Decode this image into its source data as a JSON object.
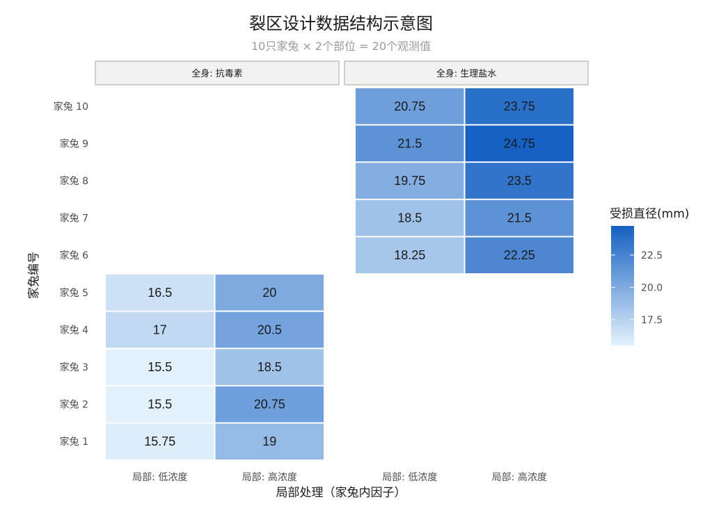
{
  "chart_data": {
    "type": "heatmap",
    "title": "裂区设计数据结构示意图",
    "subtitle": "10只家兔 × 2个部位 = 20个观测值",
    "xlabel": "局部处理（家兔内因子）",
    "ylabel": "家兔编号",
    "legend_title": "受损直径(mm)",
    "legend_placement": "right",
    "legend_ticks": [
      17.5,
      20.0,
      22.5
    ],
    "legend_tick_labels": [
      "17.5",
      "20.0",
      "22.5"
    ],
    "value_range": [
      15.5,
      24.75
    ],
    "color_low": "#e3f1fc",
    "color_high": "#1560c2",
    "grid": false,
    "rows": [
      "家兔 1",
      "家兔 2",
      "家兔 3",
      "家兔 4",
      "家兔 5",
      "家兔 6",
      "家兔 7",
      "家兔 8",
      "家兔 9",
      "家兔 10"
    ],
    "columns": [
      "局部: 低浓度",
      "局部: 高浓度"
    ],
    "panels": [
      {
        "label": "全身: 抗毒素",
        "cells": [
          {
            "row": "家兔 1",
            "col": "局部: 低浓度",
            "value": 15.75,
            "label": "15.75"
          },
          {
            "row": "家兔 1",
            "col": "局部: 高浓度",
            "value": 19,
            "label": "19"
          },
          {
            "row": "家兔 2",
            "col": "局部: 低浓度",
            "value": 15.5,
            "label": "15.5"
          },
          {
            "row": "家兔 2",
            "col": "局部: 高浓度",
            "value": 20.75,
            "label": "20.75"
          },
          {
            "row": "家兔 3",
            "col": "局部: 低浓度",
            "value": 15.5,
            "label": "15.5"
          },
          {
            "row": "家兔 3",
            "col": "局部: 高浓度",
            "value": 18.5,
            "label": "18.5"
          },
          {
            "row": "家兔 4",
            "col": "局部: 低浓度",
            "value": 17,
            "label": "17"
          },
          {
            "row": "家兔 4",
            "col": "局部: 高浓度",
            "value": 20.5,
            "label": "20.5"
          },
          {
            "row": "家兔 5",
            "col": "局部: 低浓度",
            "value": 16.5,
            "label": "16.5"
          },
          {
            "row": "家兔 5",
            "col": "局部: 高浓度",
            "value": 20,
            "label": "20"
          }
        ]
      },
      {
        "label": "全身: 生理盐水",
        "cells": [
          {
            "row": "家兔 6",
            "col": "局部: 低浓度",
            "value": 18.25,
            "label": "18.25"
          },
          {
            "row": "家兔 6",
            "col": "局部: 高浓度",
            "value": 22.25,
            "label": "22.25"
          },
          {
            "row": "家兔 7",
            "col": "局部: 低浓度",
            "value": 18.5,
            "label": "18.5"
          },
          {
            "row": "家兔 7",
            "col": "局部: 高浓度",
            "value": 21.5,
            "label": "21.5"
          },
          {
            "row": "家兔 8",
            "col": "局部: 低浓度",
            "value": 19.75,
            "label": "19.75"
          },
          {
            "row": "家兔 8",
            "col": "局部: 高浓度",
            "value": 23.5,
            "label": "23.5"
          },
          {
            "row": "家兔 9",
            "col": "局部: 低浓度",
            "value": 21.5,
            "label": "21.5"
          },
          {
            "row": "家兔 9",
            "col": "局部: 高浓度",
            "value": 24.75,
            "label": "24.75"
          },
          {
            "row": "家兔 10",
            "col": "局部: 低浓度",
            "value": 20.75,
            "label": "20.75"
          },
          {
            "row": "家兔 10",
            "col": "局部: 高浓度",
            "value": 23.75,
            "label": "23.75"
          }
        ]
      }
    ]
  }
}
